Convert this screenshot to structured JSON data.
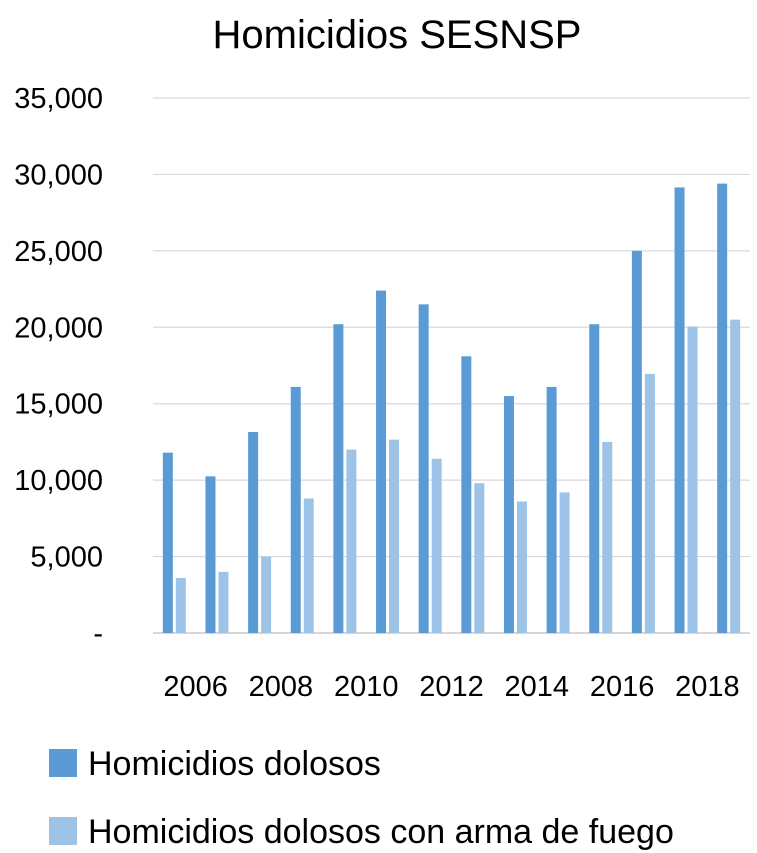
{
  "chart_data": {
    "type": "bar",
    "title": "Homicidios SESNSP",
    "xlabel": "",
    "ylabel": "",
    "categories": [
      "2006",
      "2007",
      "2008",
      "2009",
      "2010",
      "2011",
      "2012",
      "2013",
      "2014",
      "2015",
      "2016",
      "2017",
      "2018",
      "2019"
    ],
    "x_tick_labels": [
      "2006",
      "2008",
      "2010",
      "2012",
      "2014",
      "2016",
      "2018"
    ],
    "y_tick_labels": [
      "-",
      "5,000",
      "10,000",
      "15,000",
      "20,000",
      "25,000",
      "30,000",
      "35,000"
    ],
    "y_ticks": [
      0,
      5000,
      10000,
      15000,
      20000,
      25000,
      30000,
      35000
    ],
    "ylim": [
      0,
      35000
    ],
    "grid": true,
    "legend_position": "bottom",
    "series": [
      {
        "name": "Homicidios dolosos",
        "color": "#5b9bd5",
        "values": [
          11800,
          10250,
          13150,
          16100,
          20200,
          22400,
          21500,
          18100,
          15500,
          16100,
          20200,
          25000,
          29150,
          29400
        ]
      },
      {
        "name": "Homicidios dolosos con arma de fuego",
        "color": "#9dc3e6",
        "values": [
          3600,
          4000,
          5000,
          8800,
          12000,
          12650,
          11400,
          9800,
          8600,
          9200,
          12500,
          16950,
          20050,
          20500
        ]
      }
    ]
  }
}
